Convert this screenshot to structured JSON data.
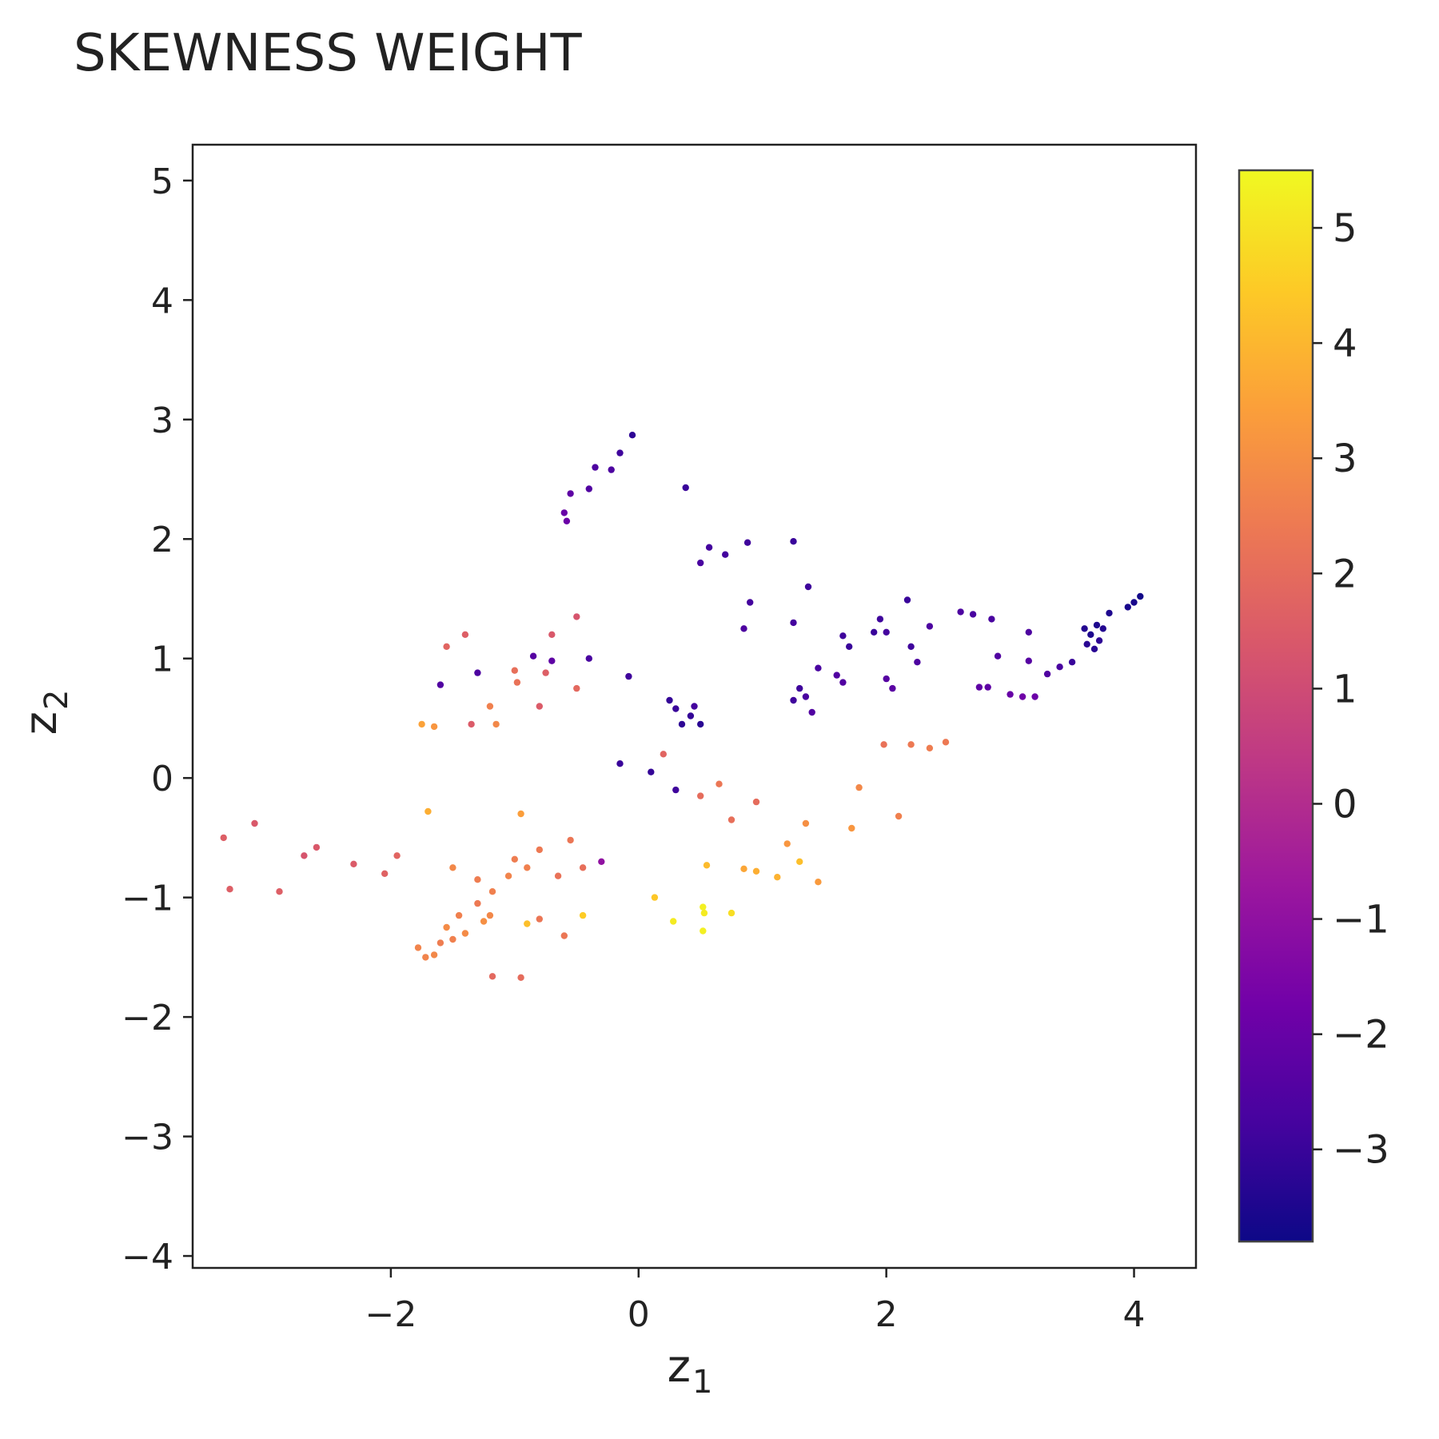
{
  "chart_data": {
    "type": "scatter",
    "title": "SKEWNESS WEIGHT",
    "xlabel": {
      "base": "z",
      "sub": "1"
    },
    "ylabel": {
      "base": "z",
      "sub": "2"
    },
    "xlim": [
      -3.6,
      4.5
    ],
    "ylim": [
      -4.1,
      5.3
    ],
    "xticks": [
      -2,
      0,
      2,
      4
    ],
    "yticks": [
      -4,
      -3,
      -2,
      -1,
      0,
      1,
      2,
      3,
      4,
      5
    ],
    "grid": false,
    "colorscale": "plasma",
    "colorbar": {
      "range": [
        -3.8,
        5.5
      ],
      "ticks": [
        -3,
        -2,
        -1,
        0,
        1,
        2,
        3,
        4,
        5
      ]
    },
    "colors": [
      "#0d0887",
      "#46039f",
      "#7201a8",
      "#9c179e",
      "#bd3786",
      "#d8576b",
      "#ed7953",
      "#fb9f3a",
      "#fdca26",
      "#f0f921"
    ],
    "points": [
      [
        -0.05,
        2.87,
        -3.2
      ],
      [
        -0.15,
        2.72,
        -2.9
      ],
      [
        -0.35,
        2.6,
        -2.6
      ],
      [
        -0.22,
        2.58,
        -2.6
      ],
      [
        -0.4,
        2.42,
        -2.5
      ],
      [
        -0.55,
        2.38,
        -2.2
      ],
      [
        -0.6,
        2.22,
        -2.0
      ],
      [
        -0.58,
        2.15,
        -1.9
      ],
      [
        0.38,
        2.43,
        -3.0
      ],
      [
        0.57,
        1.93,
        -2.8
      ],
      [
        0.88,
        1.97,
        -2.9
      ],
      [
        1.25,
        1.98,
        -3.0
      ],
      [
        0.5,
        1.8,
        -2.7
      ],
      [
        0.7,
        1.87,
        -2.8
      ],
      [
        1.37,
        1.6,
        -2.9
      ],
      [
        0.9,
        1.47,
        -2.8
      ],
      [
        2.17,
        1.49,
        -3.0
      ],
      [
        2.6,
        1.39,
        -2.6
      ],
      [
        2.7,
        1.37,
        -2.7
      ],
      [
        2.85,
        1.33,
        -2.7
      ],
      [
        2.35,
        1.27,
        -2.6
      ],
      [
        1.95,
        1.33,
        -2.9
      ],
      [
        1.9,
        1.22,
        -3.0
      ],
      [
        2.0,
        1.22,
        -2.8
      ],
      [
        1.65,
        1.19,
        -2.9
      ],
      [
        1.25,
        1.3,
        -2.8
      ],
      [
        0.85,
        1.25,
        -2.6
      ],
      [
        1.7,
        1.1,
        -3.0
      ],
      [
        2.2,
        1.1,
        -2.9
      ],
      [
        2.25,
        0.97,
        -2.6
      ],
      [
        2.9,
        1.02,
        -2.5
      ],
      [
        3.15,
        1.22,
        -2.6
      ],
      [
        3.6,
        1.25,
        -3.4
      ],
      [
        3.65,
        1.2,
        -3.5
      ],
      [
        3.7,
        1.28,
        -3.5
      ],
      [
        3.75,
        1.25,
        -3.4
      ],
      [
        3.8,
        1.38,
        -3.5
      ],
      [
        3.62,
        1.12,
        -3.3
      ],
      [
        3.68,
        1.08,
        -3.3
      ],
      [
        3.72,
        1.15,
        -3.2
      ],
      [
        3.95,
        1.43,
        -3.6
      ],
      [
        4.0,
        1.47,
        -3.6
      ],
      [
        4.05,
        1.52,
        -3.7
      ],
      [
        3.5,
        0.97,
        -3.0
      ],
      [
        3.4,
        0.93,
        -2.7
      ],
      [
        3.3,
        0.87,
        -2.5
      ],
      [
        3.15,
        0.98,
        -2.4
      ],
      [
        2.82,
        0.76,
        -2.2
      ],
      [
        2.75,
        0.76,
        -2.2
      ],
      [
        3.0,
        0.7,
        -2.0
      ],
      [
        3.1,
        0.68,
        -1.8
      ],
      [
        3.2,
        0.68,
        -1.9
      ],
      [
        2.05,
        0.75,
        -2.3
      ],
      [
        2.0,
        0.83,
        -2.4
      ],
      [
        1.6,
        0.86,
        -2.5
      ],
      [
        1.45,
        0.92,
        -2.7
      ],
      [
        1.65,
        0.8,
        -2.5
      ],
      [
        1.3,
        0.75,
        -2.9
      ],
      [
        1.35,
        0.68,
        -2.7
      ],
      [
        1.25,
        0.65,
        -2.9
      ],
      [
        1.4,
        0.55,
        -2.5
      ],
      [
        0.25,
        0.65,
        -3.1
      ],
      [
        0.3,
        0.58,
        -3.0
      ],
      [
        0.45,
        0.6,
        -2.8
      ],
      [
        0.5,
        0.45,
        -3.3
      ],
      [
        0.35,
        0.45,
        -3.2
      ],
      [
        0.42,
        0.52,
        -3.1
      ],
      [
        -0.08,
        0.85,
        -2.9
      ],
      [
        -0.4,
        1.0,
        -2.7
      ],
      [
        -1.6,
        0.78,
        -2.5
      ],
      [
        -1.3,
        0.88,
        -2.6
      ],
      [
        -0.85,
        1.02,
        -2.4
      ],
      [
        -0.7,
        0.98,
        -2.2
      ],
      [
        0.1,
        0.05,
        -3.1
      ],
      [
        -0.15,
        0.12,
        -3.0
      ],
      [
        0.3,
        -0.1,
        -2.9
      ],
      [
        -0.3,
        -0.7,
        -1.0
      ],
      [
        0.28,
        -1.2,
        5.2
      ],
      [
        0.52,
        -1.08,
        5.3
      ],
      [
        0.53,
        -1.13,
        5.2
      ],
      [
        0.52,
        -1.28,
        5.3
      ],
      [
        0.75,
        -1.13,
        4.9
      ],
      [
        0.13,
        -1.0,
        4.4
      ],
      [
        -0.9,
        -1.22,
        4.2
      ],
      [
        -0.45,
        -1.15,
        4.5
      ],
      [
        1.3,
        -0.7,
        4.2
      ],
      [
        1.12,
        -0.83,
        3.9
      ],
      [
        0.95,
        -0.78,
        3.8
      ],
      [
        0.85,
        -0.76,
        3.6
      ],
      [
        0.55,
        -0.73,
        4.1
      ],
      [
        1.45,
        -0.87,
        3.3
      ],
      [
        1.2,
        -0.55,
        3.2
      ],
      [
        1.35,
        -0.38,
        3.0
      ],
      [
        1.72,
        -0.42,
        3.2
      ],
      [
        1.78,
        -0.08,
        2.8
      ],
      [
        2.1,
        -0.32,
        2.6
      ],
      [
        2.2,
        0.28,
        2.4
      ],
      [
        2.35,
        0.25,
        2.5
      ],
      [
        2.48,
        0.3,
        2.4
      ],
      [
        1.98,
        0.28,
        2.2
      ],
      [
        -1.75,
        0.45,
        3.5
      ],
      [
        -1.65,
        0.43,
        3.2
      ],
      [
        -1.7,
        -0.28,
        3.8
      ],
      [
        -0.95,
        -0.3,
        3.4
      ],
      [
        -1.2,
        0.6,
        2.6
      ],
      [
        -1.15,
        0.45,
        2.8
      ],
      [
        -3.35,
        -0.5,
        1.6
      ],
      [
        -3.3,
        -0.93,
        1.6
      ],
      [
        -3.1,
        -0.38,
        1.4
      ],
      [
        -2.9,
        -0.95,
        1.6
      ],
      [
        -2.7,
        -0.65,
        1.3
      ],
      [
        -0.95,
        -1.67,
        2.0
      ],
      [
        -1.18,
        -1.66,
        1.9
      ],
      [
        -0.6,
        -1.32,
        2.3
      ],
      [
        -0.8,
        -1.18,
        2.3
      ],
      [
        -1.5,
        -1.35,
        2.6
      ],
      [
        -1.55,
        -1.25,
        2.9
      ],
      [
        -1.78,
        -1.42,
        2.7
      ],
      [
        -1.72,
        -1.5,
        2.7
      ],
      [
        -1.65,
        -1.48,
        2.8
      ],
      [
        -1.6,
        -1.38,
        2.5
      ],
      [
        -1.45,
        -1.15,
        2.6
      ],
      [
        -1.4,
        -1.3,
        2.9
      ],
      [
        -1.3,
        -1.05,
        2.4
      ],
      [
        -1.25,
        -1.2,
        3.0
      ],
      [
        -1.2,
        -1.15,
        2.8
      ],
      [
        -1.5,
        -0.75,
        2.8
      ],
      [
        -1.3,
        -0.85,
        2.5
      ],
      [
        -1.18,
        -0.95,
        2.6
      ],
      [
        -1.05,
        -0.82,
        2.7
      ],
      [
        -1.0,
        -0.68,
        2.5
      ],
      [
        -0.9,
        -0.75,
        2.6
      ],
      [
        -0.8,
        -0.6,
        2.4
      ],
      [
        -0.65,
        -0.82,
        2.2
      ],
      [
        -0.55,
        -0.52,
        2.3
      ],
      [
        -0.45,
        -0.75,
        2.1
      ],
      [
        -1.95,
        -0.65,
        1.8
      ],
      [
        -2.05,
        -0.8,
        1.7
      ],
      [
        -2.3,
        -0.72,
        1.5
      ],
      [
        -2.6,
        -0.58,
        1.4
      ],
      [
        -1.0,
        0.9,
        2.1
      ],
      [
        -0.98,
        0.8,
        2.2
      ],
      [
        -0.5,
        0.75,
        1.9
      ],
      [
        -0.75,
        0.88,
        1.6
      ],
      [
        -0.8,
        0.6,
        1.5
      ],
      [
        -1.35,
        0.45,
        1.5
      ],
      [
        -1.55,
        1.1,
        1.8
      ],
      [
        -1.4,
        1.2,
        1.6
      ],
      [
        -0.7,
        1.2,
        1.4
      ],
      [
        -0.5,
        1.35,
        1.3
      ],
      [
        0.2,
        0.2,
        1.8
      ],
      [
        0.5,
        -0.15,
        2.0
      ],
      [
        0.75,
        -0.35,
        2.1
      ],
      [
        0.65,
        -0.05,
        2.3
      ],
      [
        0.95,
        -0.2,
        2.0
      ]
    ]
  }
}
